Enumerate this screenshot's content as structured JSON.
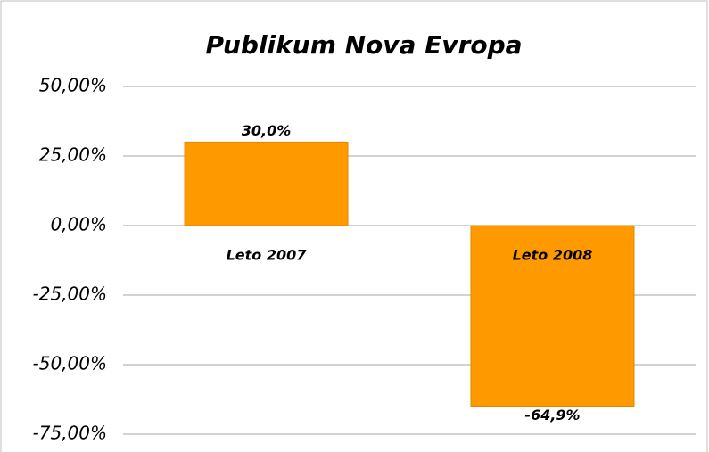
{
  "chart_data": {
    "type": "bar",
    "title": "Publikum Nova Evropa",
    "categories": [
      "Leto 2007",
      "Leto 2008"
    ],
    "values": [
      30.0,
      -64.9
    ],
    "value_labels": [
      "30,0%",
      "-64,9%"
    ],
    "color": "#ff9900",
    "ylim": [
      -75,
      50
    ],
    "yticks": [
      {
        "value": 50,
        "label": "50,00%"
      },
      {
        "value": 25,
        "label": "25,00%"
      },
      {
        "value": 0,
        "label": "0,00%"
      },
      {
        "value": -25,
        "label": "-25,00%"
      },
      {
        "value": -50,
        "label": "-50,00%"
      },
      {
        "value": -75,
        "label": "-75,00%"
      }
    ],
    "grid": true
  }
}
